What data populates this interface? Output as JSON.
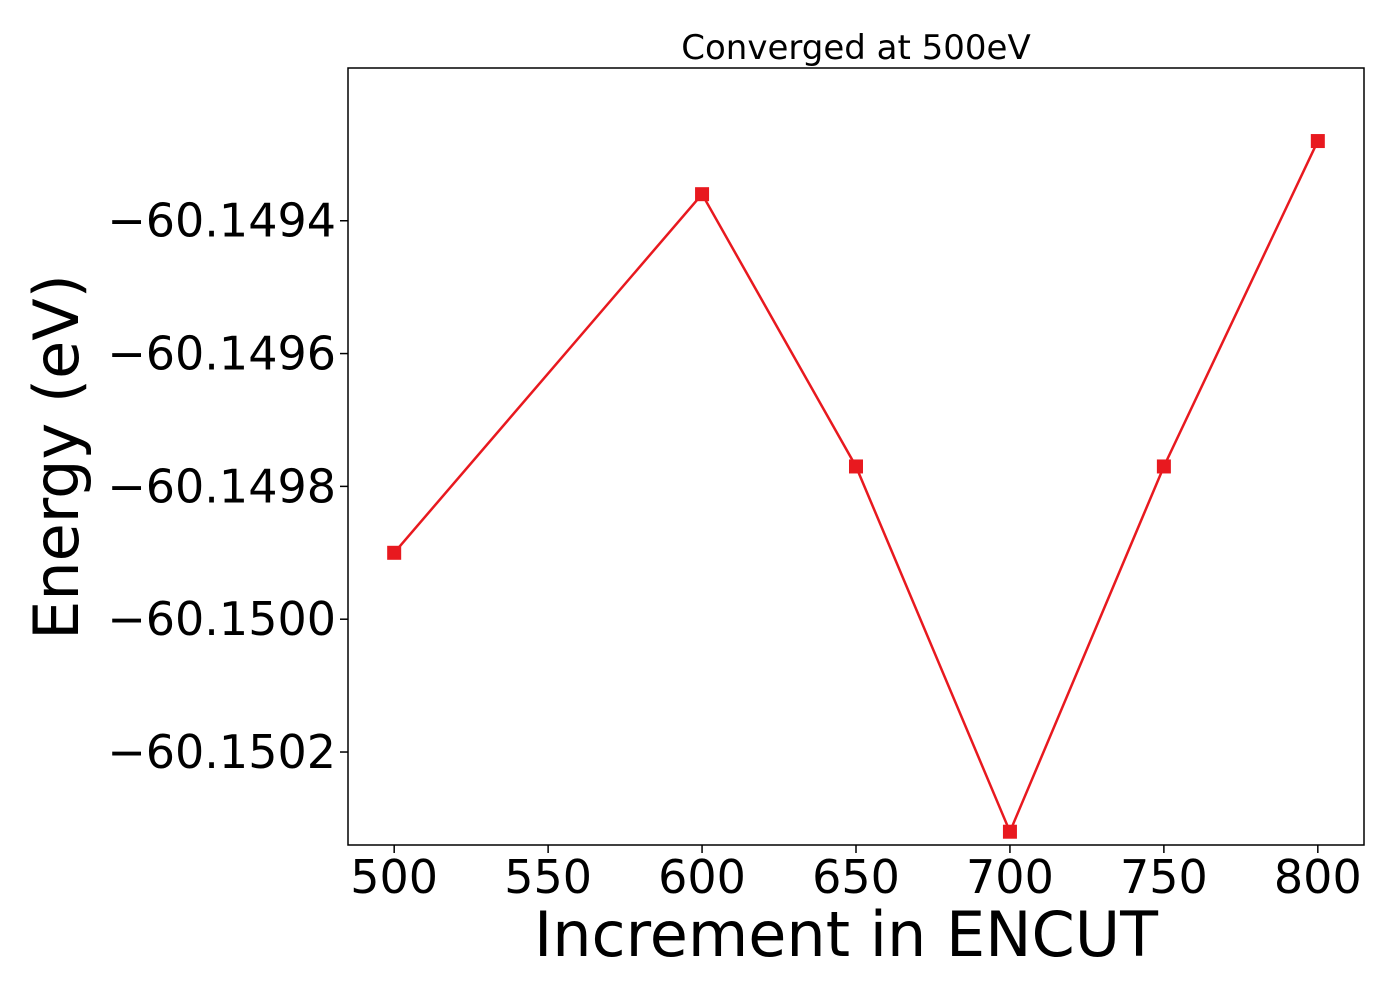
{
  "chart_data": {
    "type": "line",
    "title": "Converged at 500eV",
    "xlabel": "Increment in ENCUT",
    "ylabel": "Energy (eV)",
    "x": [
      500,
      600,
      650,
      700,
      750,
      800
    ],
    "series": [
      {
        "values": [
          -60.1499,
          -60.14936,
          -60.14977,
          -60.15032,
          -60.14977,
          -60.14928
        ],
        "color": "#e8191f",
        "marker": "square"
      }
    ],
    "xlim": [
      485,
      815
    ],
    "ylim": [
      -60.15034,
      -60.14917
    ],
    "xticks": [
      500,
      550,
      600,
      650,
      700,
      750,
      800
    ],
    "xtick_labels": [
      "500",
      "550",
      "600",
      "650",
      "700",
      "750",
      "800"
    ],
    "yticks": [
      -60.1494,
      -60.1496,
      -60.1498,
      -60.15,
      -60.1502
    ],
    "ytick_labels": [
      "−60.1494",
      "−60.1496",
      "−60.1498",
      "−60.1500",
      "−60.1502"
    ],
    "grid": false,
    "legend": "none"
  }
}
